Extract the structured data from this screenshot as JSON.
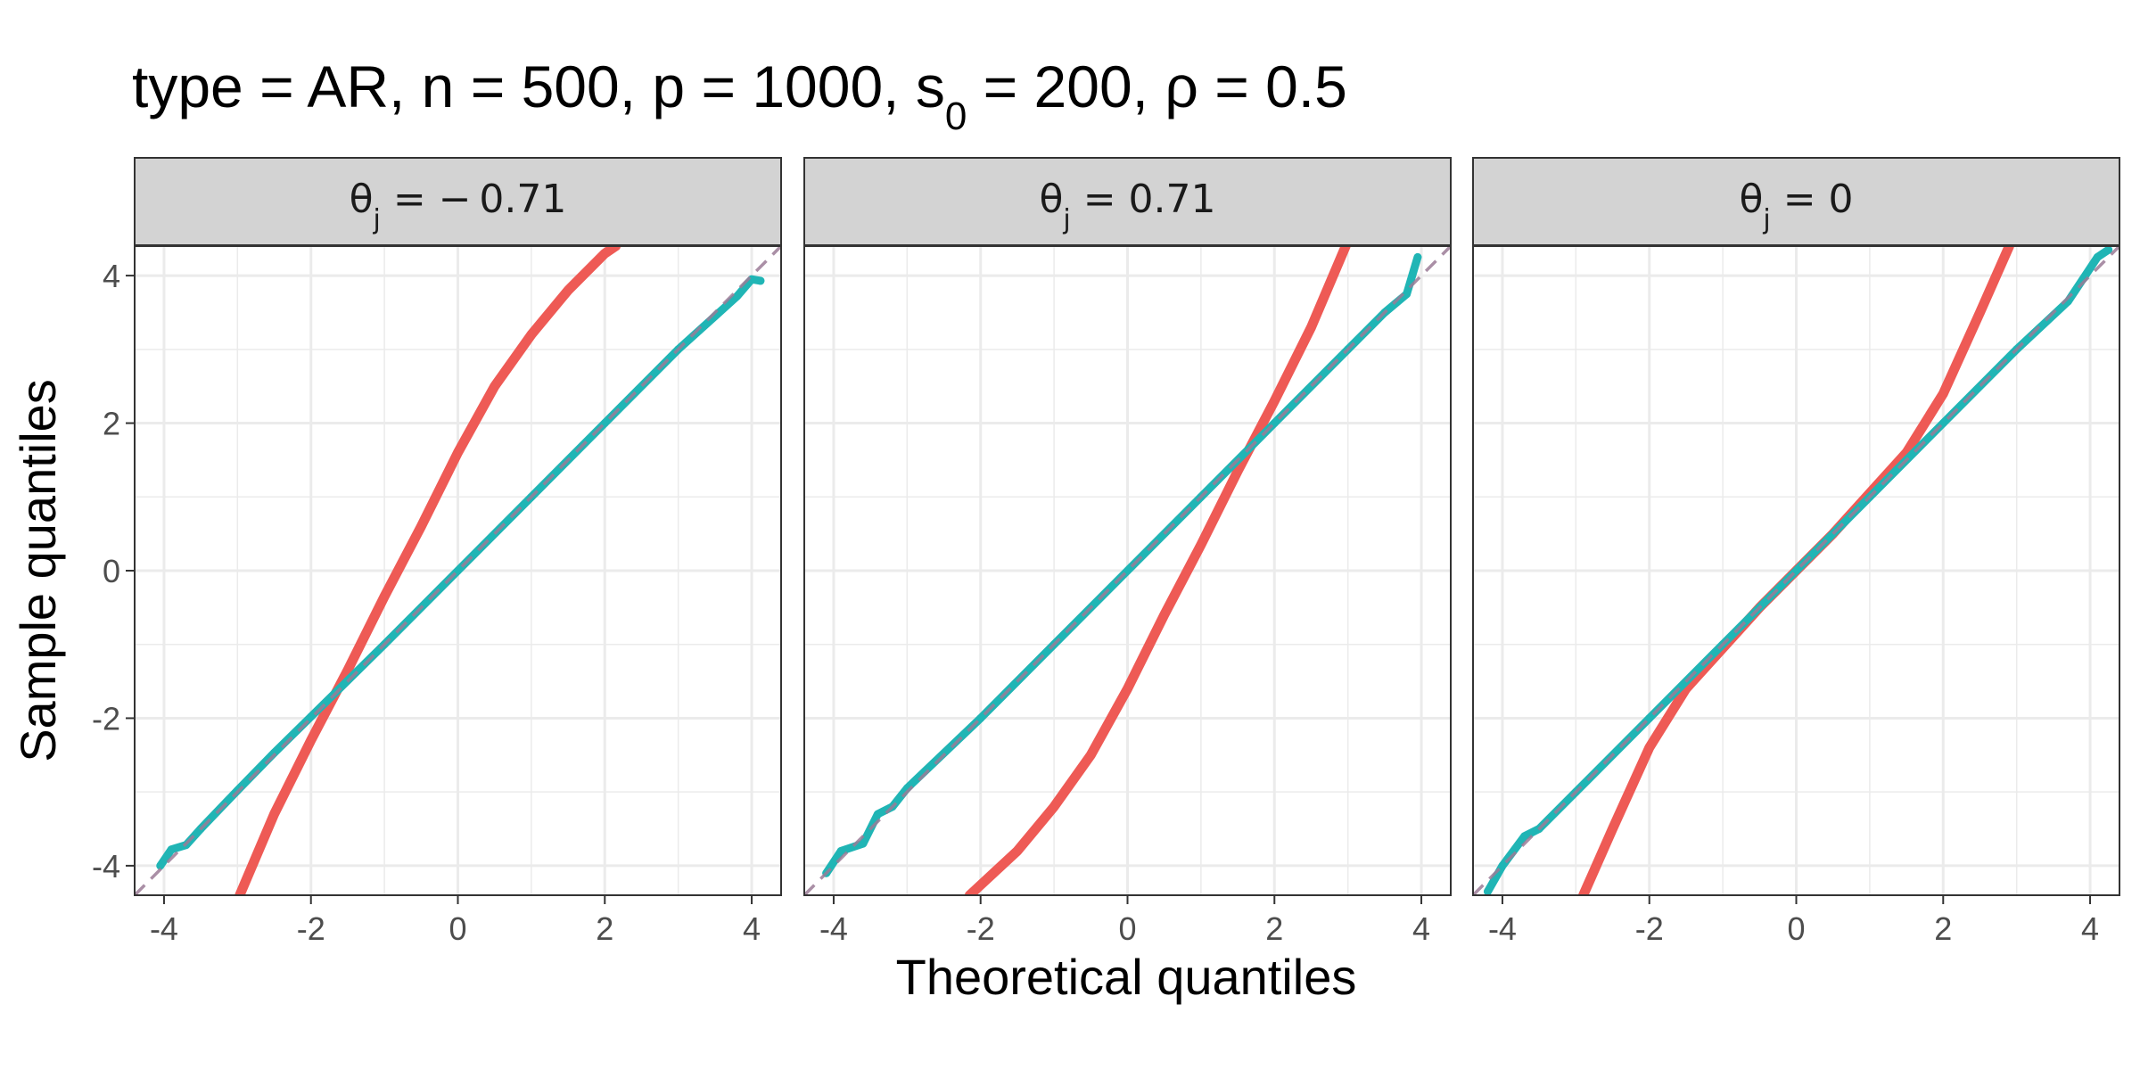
{
  "chart_data": {
    "type": "scatter",
    "title": "type = AR, n = 500, p = 1000, s₀ = 200, ρ = 0.5",
    "title_parts": {
      "prefix": "type = AR, n = 500, p = 1000, s",
      "sub": "0",
      "suffix": " = 200, ρ = 0.5"
    },
    "xlabel": "Theoretical quantiles",
    "ylabel": "Sample quantiles",
    "xlim": [
      -4.4,
      4.4
    ],
    "ylim": [
      -4.4,
      4.4
    ],
    "x_ticks": [
      -4,
      -2,
      0,
      2,
      4
    ],
    "y_ticks": [
      -4,
      -2,
      0,
      2,
      4
    ],
    "x_tick_labels": [
      "-4",
      "-2",
      "0",
      "2",
      "4"
    ],
    "y_tick_labels": [
      "-4",
      "-2",
      "0",
      "2",
      "4"
    ],
    "grid": true,
    "reference_line": {
      "slope": 1,
      "intercept": 0,
      "style": "dashed",
      "color": "#9b7b96"
    },
    "colors": {
      "red": "#ee5a55",
      "teal": "#20b5b5",
      "strip_bg": "#d3d3d3",
      "grid": "#ebebeb",
      "panel_border": "#333333"
    },
    "panels": [
      {
        "strip": {
          "theta": "θ",
          "sub": "j",
          "rest": " = − 0.71"
        },
        "red_series": [
          [
            -2.97,
            -4.4
          ],
          [
            -2.5,
            -3.3
          ],
          [
            -2.0,
            -2.3
          ],
          [
            -1.5,
            -1.35
          ],
          [
            -1.0,
            -0.35
          ],
          [
            -0.5,
            0.6
          ],
          [
            0.0,
            1.6
          ],
          [
            0.5,
            2.5
          ],
          [
            1.0,
            3.2
          ],
          [
            1.5,
            3.8
          ],
          [
            2.0,
            4.3
          ],
          [
            2.15,
            4.4
          ]
        ],
        "teal_series": [
          [
            -4.05,
            -4.0
          ],
          [
            -3.9,
            -3.78
          ],
          [
            -3.7,
            -3.72
          ],
          [
            -3.5,
            -3.5
          ],
          [
            -3.0,
            -2.98
          ],
          [
            -2.5,
            -2.47
          ],
          [
            -2.0,
            -1.98
          ],
          [
            -1.0,
            -1.0
          ],
          [
            0.0,
            0.0
          ],
          [
            1.0,
            1.0
          ],
          [
            2.0,
            2.0
          ],
          [
            3.0,
            3.0
          ],
          [
            3.5,
            3.45
          ],
          [
            3.8,
            3.72
          ],
          [
            4.0,
            3.95
          ],
          [
            4.12,
            3.93
          ]
        ]
      },
      {
        "strip": {
          "theta": "θ",
          "sub": "j",
          "rest": " = 0.71"
        },
        "red_series": [
          [
            -2.15,
            -4.4
          ],
          [
            -1.5,
            -3.8
          ],
          [
            -1.0,
            -3.2
          ],
          [
            -0.5,
            -2.5
          ],
          [
            0.0,
            -1.6
          ],
          [
            0.5,
            -0.6
          ],
          [
            1.0,
            0.35
          ],
          [
            1.5,
            1.35
          ],
          [
            2.0,
            2.3
          ],
          [
            2.5,
            3.3
          ],
          [
            2.97,
            4.4
          ]
        ],
        "teal_series": [
          [
            -4.1,
            -4.1
          ],
          [
            -3.9,
            -3.8
          ],
          [
            -3.6,
            -3.7
          ],
          [
            -3.4,
            -3.3
          ],
          [
            -3.2,
            -3.2
          ],
          [
            -3.0,
            -2.95
          ],
          [
            -2.0,
            -2.0
          ],
          [
            -1.0,
            -1.0
          ],
          [
            0.0,
            0.0
          ],
          [
            1.0,
            1.0
          ],
          [
            2.0,
            2.0
          ],
          [
            3.0,
            3.0
          ],
          [
            3.5,
            3.5
          ],
          [
            3.8,
            3.75
          ],
          [
            3.95,
            4.25
          ]
        ]
      },
      {
        "strip": {
          "theta": "θ",
          "sub": "j",
          "rest": " = 0"
        },
        "red_series": [
          [
            -2.9,
            -4.4
          ],
          [
            -2.5,
            -3.5
          ],
          [
            -2.0,
            -2.4
          ],
          [
            -1.5,
            -1.6
          ],
          [
            -1.0,
            -1.05
          ],
          [
            -0.5,
            -0.5
          ],
          [
            0.0,
            0.0
          ],
          [
            0.5,
            0.5
          ],
          [
            1.0,
            1.05
          ],
          [
            1.5,
            1.6
          ],
          [
            2.0,
            2.4
          ],
          [
            2.5,
            3.5
          ],
          [
            2.9,
            4.4
          ]
        ],
        "teal_series": [
          [
            -4.2,
            -4.35
          ],
          [
            -4.0,
            -4.0
          ],
          [
            -3.7,
            -3.6
          ],
          [
            -3.5,
            -3.5
          ],
          [
            -3.0,
            -3.0
          ],
          [
            -2.0,
            -2.0
          ],
          [
            -1.0,
            -1.0
          ],
          [
            0.0,
            0.0
          ],
          [
            1.0,
            1.0
          ],
          [
            2.0,
            2.0
          ],
          [
            3.0,
            3.0
          ],
          [
            3.7,
            3.65
          ],
          [
            3.9,
            3.95
          ],
          [
            4.1,
            4.25
          ],
          [
            4.25,
            4.35
          ]
        ]
      }
    ]
  }
}
